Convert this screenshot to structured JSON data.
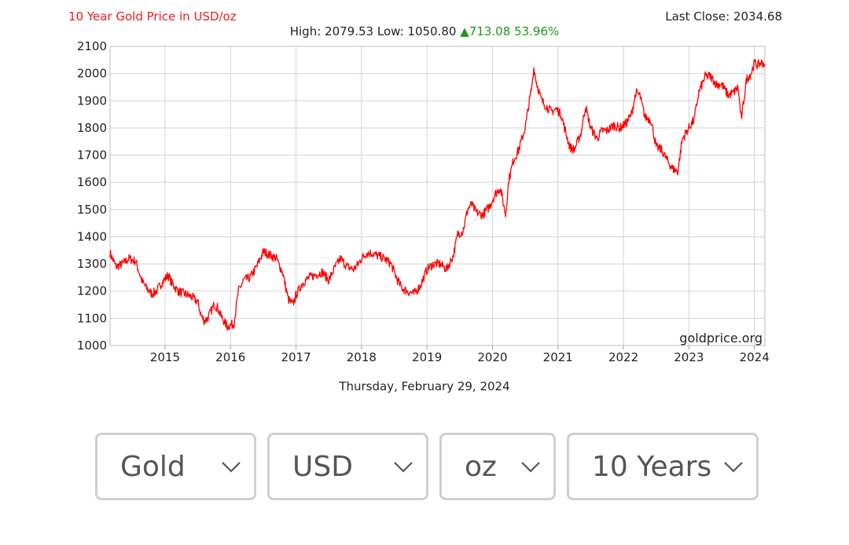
{
  "chart_data": {
    "type": "line",
    "title": "10 Year Gold Price in USD/oz",
    "summary": {
      "high_label": "High:",
      "high": "2079.53",
      "low_label": "Low:",
      "low": "1050.80",
      "change": "713.08",
      "change_pct": "53.96%",
      "last_close_label": "Last Close:",
      "last_close": "2034.68"
    },
    "date_label": "Thursday, February 29, 2024",
    "watermark": "goldprice.org",
    "xlim": [
      2014.16,
      2024.16
    ],
    "ylim": [
      1000,
      2100
    ],
    "x_ticks": [
      "2015",
      "2016",
      "2017",
      "2018",
      "2019",
      "2020",
      "2021",
      "2022",
      "2023",
      "2024"
    ],
    "y_ticks": [
      "1000",
      "1100",
      "1200",
      "1300",
      "1400",
      "1500",
      "1600",
      "1700",
      "1800",
      "1900",
      "2000",
      "2100"
    ],
    "grid": true,
    "series": [
      {
        "color": "#ff0000",
        "x": [
          2014.16,
          2014.25,
          2014.35,
          2014.45,
          2014.55,
          2014.65,
          2014.72,
          2014.8,
          2014.87,
          2014.95,
          2015.05,
          2015.1,
          2015.2,
          2015.3,
          2015.4,
          2015.5,
          2015.55,
          2015.6,
          2015.65,
          2015.75,
          2015.8,
          2015.85,
          2015.95,
          2016.05,
          2016.12,
          2016.2,
          2016.3,
          2016.4,
          2016.5,
          2016.55,
          2016.62,
          2016.7,
          2016.8,
          2016.88,
          2016.95,
          2017.0,
          2017.1,
          2017.2,
          2017.3,
          2017.4,
          2017.5,
          2017.6,
          2017.68,
          2017.78,
          2017.88,
          2017.95,
          2018.0,
          2018.08,
          2018.15,
          2018.25,
          2018.35,
          2018.45,
          2018.55,
          2018.62,
          2018.7,
          2018.8,
          2018.9,
          2019.0,
          2019.1,
          2019.2,
          2019.3,
          2019.4,
          2019.47,
          2019.55,
          2019.62,
          2019.68,
          2019.75,
          2019.85,
          2019.95,
          2020.05,
          2020.12,
          2020.2,
          2020.25,
          2020.32,
          2020.4,
          2020.5,
          2020.55,
          2020.6,
          2020.63,
          2020.68,
          2020.75,
          2020.82,
          2020.9,
          2020.97,
          2021.05,
          2021.1,
          2021.18,
          2021.25,
          2021.35,
          2021.42,
          2021.5,
          2021.6,
          2021.67,
          2021.75,
          2021.85,
          2021.95,
          2022.05,
          2022.12,
          2022.19,
          2022.25,
          2022.33,
          2022.42,
          2022.5,
          2022.58,
          2022.67,
          2022.75,
          2022.83,
          2022.9,
          2023.0,
          2023.08,
          2023.15,
          2023.25,
          2023.33,
          2023.42,
          2023.5,
          2023.6,
          2023.68,
          2023.75,
          2023.8,
          2023.88,
          2023.95,
          2024.0,
          2024.05,
          2024.1,
          2024.16
        ],
        "y": [
          1340,
          1290,
          1300,
          1320,
          1310,
          1235,
          1210,
          1190,
          1200,
          1230,
          1260,
          1230,
          1200,
          1190,
          1180,
          1160,
          1110,
          1090,
          1100,
          1150,
          1140,
          1110,
          1070,
          1080,
          1200,
          1240,
          1250,
          1290,
          1345,
          1340,
          1330,
          1320,
          1265,
          1170,
          1150,
          1185,
          1230,
          1250,
          1260,
          1270,
          1240,
          1290,
          1320,
          1290,
          1280,
          1300,
          1320,
          1340,
          1340,
          1330,
          1320,
          1300,
          1240,
          1210,
          1200,
          1190,
          1220,
          1280,
          1300,
          1300,
          1280,
          1330,
          1410,
          1420,
          1500,
          1520,
          1490,
          1480,
          1510,
          1560,
          1580,
          1480,
          1610,
          1680,
          1720,
          1800,
          1880,
          1950,
          2020,
          1960,
          1900,
          1880,
          1860,
          1870,
          1850,
          1800,
          1730,
          1720,
          1780,
          1880,
          1800,
          1760,
          1790,
          1790,
          1810,
          1800,
          1820,
          1850,
          1930,
          1920,
          1840,
          1830,
          1730,
          1720,
          1680,
          1650,
          1640,
          1760,
          1800,
          1830,
          1930,
          1990,
          1990,
          1960,
          1960,
          1920,
          1930,
          1950,
          1830,
          1980,
          2000,
          2040,
          2030,
          2040,
          2034.68
        ]
      }
    ]
  },
  "controls": {
    "metal": "Gold",
    "currency": "USD",
    "unit": "oz",
    "range": "10 Years"
  }
}
